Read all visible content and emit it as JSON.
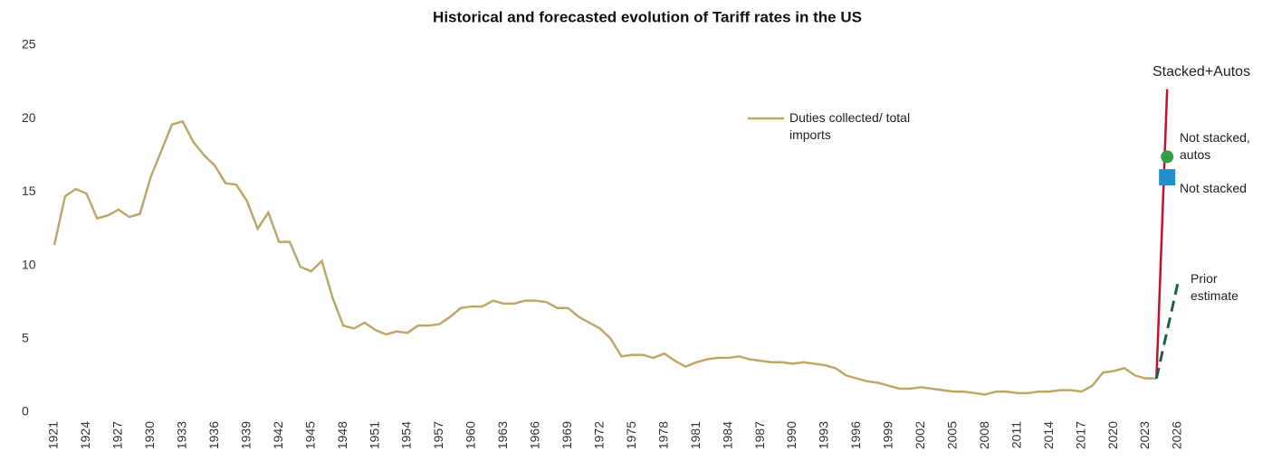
{
  "chart_data": {
    "type": "line",
    "title": "Historical and forecasted evolution of Tariff rates in the US",
    "xlim": [
      1921,
      2026
    ],
    "xticks": [
      1921,
      1924,
      1927,
      1930,
      1933,
      1936,
      1939,
      1942,
      1945,
      1948,
      1951,
      1954,
      1957,
      1960,
      1963,
      1966,
      1969,
      1972,
      1975,
      1978,
      1981,
      1984,
      1987,
      1990,
      1993,
      1996,
      1999,
      2002,
      2005,
      2008,
      2011,
      2014,
      2017,
      2020,
      2023,
      2026
    ],
    "ylim": [
      0,
      25
    ],
    "yticks": [
      0,
      5,
      10,
      15,
      20,
      25
    ],
    "series": [
      {
        "name": "Duties collected/ total imports",
        "color": "#bfa76a",
        "style": "line",
        "x": [
          1921,
          1922,
          1923,
          1924,
          1925,
          1926,
          1927,
          1928,
          1929,
          1930,
          1931,
          1932,
          1933,
          1934,
          1935,
          1936,
          1937,
          1938,
          1939,
          1940,
          1941,
          1942,
          1943,
          1944,
          1945,
          1946,
          1947,
          1948,
          1949,
          1950,
          1951,
          1952,
          1953,
          1954,
          1955,
          1956,
          1957,
          1958,
          1959,
          1960,
          1961,
          1962,
          1963,
          1964,
          1965,
          1966,
          1967,
          1968,
          1969,
          1970,
          1971,
          1972,
          1973,
          1974,
          1975,
          1976,
          1977,
          1978,
          1979,
          1980,
          1981,
          1982,
          1983,
          1984,
          1985,
          1986,
          1987,
          1988,
          1989,
          1990,
          1991,
          1992,
          1993,
          1994,
          1995,
          1996,
          1997,
          1998,
          1999,
          2000,
          2001,
          2002,
          2003,
          2004,
          2005,
          2006,
          2007,
          2008,
          2009,
          2010,
          2011,
          2012,
          2013,
          2014,
          2015,
          2016,
          2017,
          2018,
          2019,
          2020,
          2021,
          2022,
          2023,
          2024
        ],
        "values": [
          11.4,
          14.7,
          15.2,
          14.9,
          13.2,
          13.4,
          13.8,
          13.3,
          13.5,
          16.0,
          17.8,
          19.6,
          19.8,
          18.4,
          17.5,
          16.8,
          15.6,
          15.5,
          14.4,
          12.5,
          13.6,
          11.6,
          11.6,
          9.9,
          9.6,
          10.3,
          7.8,
          5.9,
          5.7,
          6.1,
          5.6,
          5.3,
          5.5,
          5.4,
          5.9,
          5.9,
          6.0,
          6.5,
          7.1,
          7.2,
          7.2,
          7.6,
          7.4,
          7.4,
          7.6,
          7.6,
          7.5,
          7.1,
          7.1,
          6.5,
          6.1,
          5.7,
          5.0,
          3.8,
          3.9,
          3.9,
          3.7,
          4.0,
          3.5,
          3.1,
          3.4,
          3.6,
          3.7,
          3.7,
          3.8,
          3.6,
          3.5,
          3.4,
          3.4,
          3.3,
          3.4,
          3.3,
          3.2,
          3.0,
          2.5,
          2.3,
          2.1,
          2.0,
          1.8,
          1.6,
          1.6,
          1.7,
          1.6,
          1.5,
          1.4,
          1.4,
          1.3,
          1.2,
          1.4,
          1.4,
          1.3,
          1.3,
          1.4,
          1.4,
          1.5,
          1.5,
          1.4,
          1.8,
          2.7,
          2.8,
          3.0,
          2.5,
          2.3,
          2.3
        ]
      },
      {
        "name": "Stacked+Autos",
        "color": "#c8102e",
        "style": "line",
        "x": [
          2024,
          2025
        ],
        "values": [
          2.3,
          22
        ]
      },
      {
        "name": "Not stacked, autos",
        "color": "#2e9e47",
        "style": "circle",
        "x": [
          2025
        ],
        "values": [
          17.4
        ]
      },
      {
        "name": "Not stacked",
        "color": "#1f8fd0",
        "style": "square",
        "x": [
          2025
        ],
        "values": [
          16.0
        ]
      },
      {
        "name": "Prior estimate",
        "color": "#1e5e4a",
        "style": "dashed",
        "x": [
          2024,
          2026
        ],
        "values": [
          2.3,
          8.8
        ]
      }
    ]
  }
}
